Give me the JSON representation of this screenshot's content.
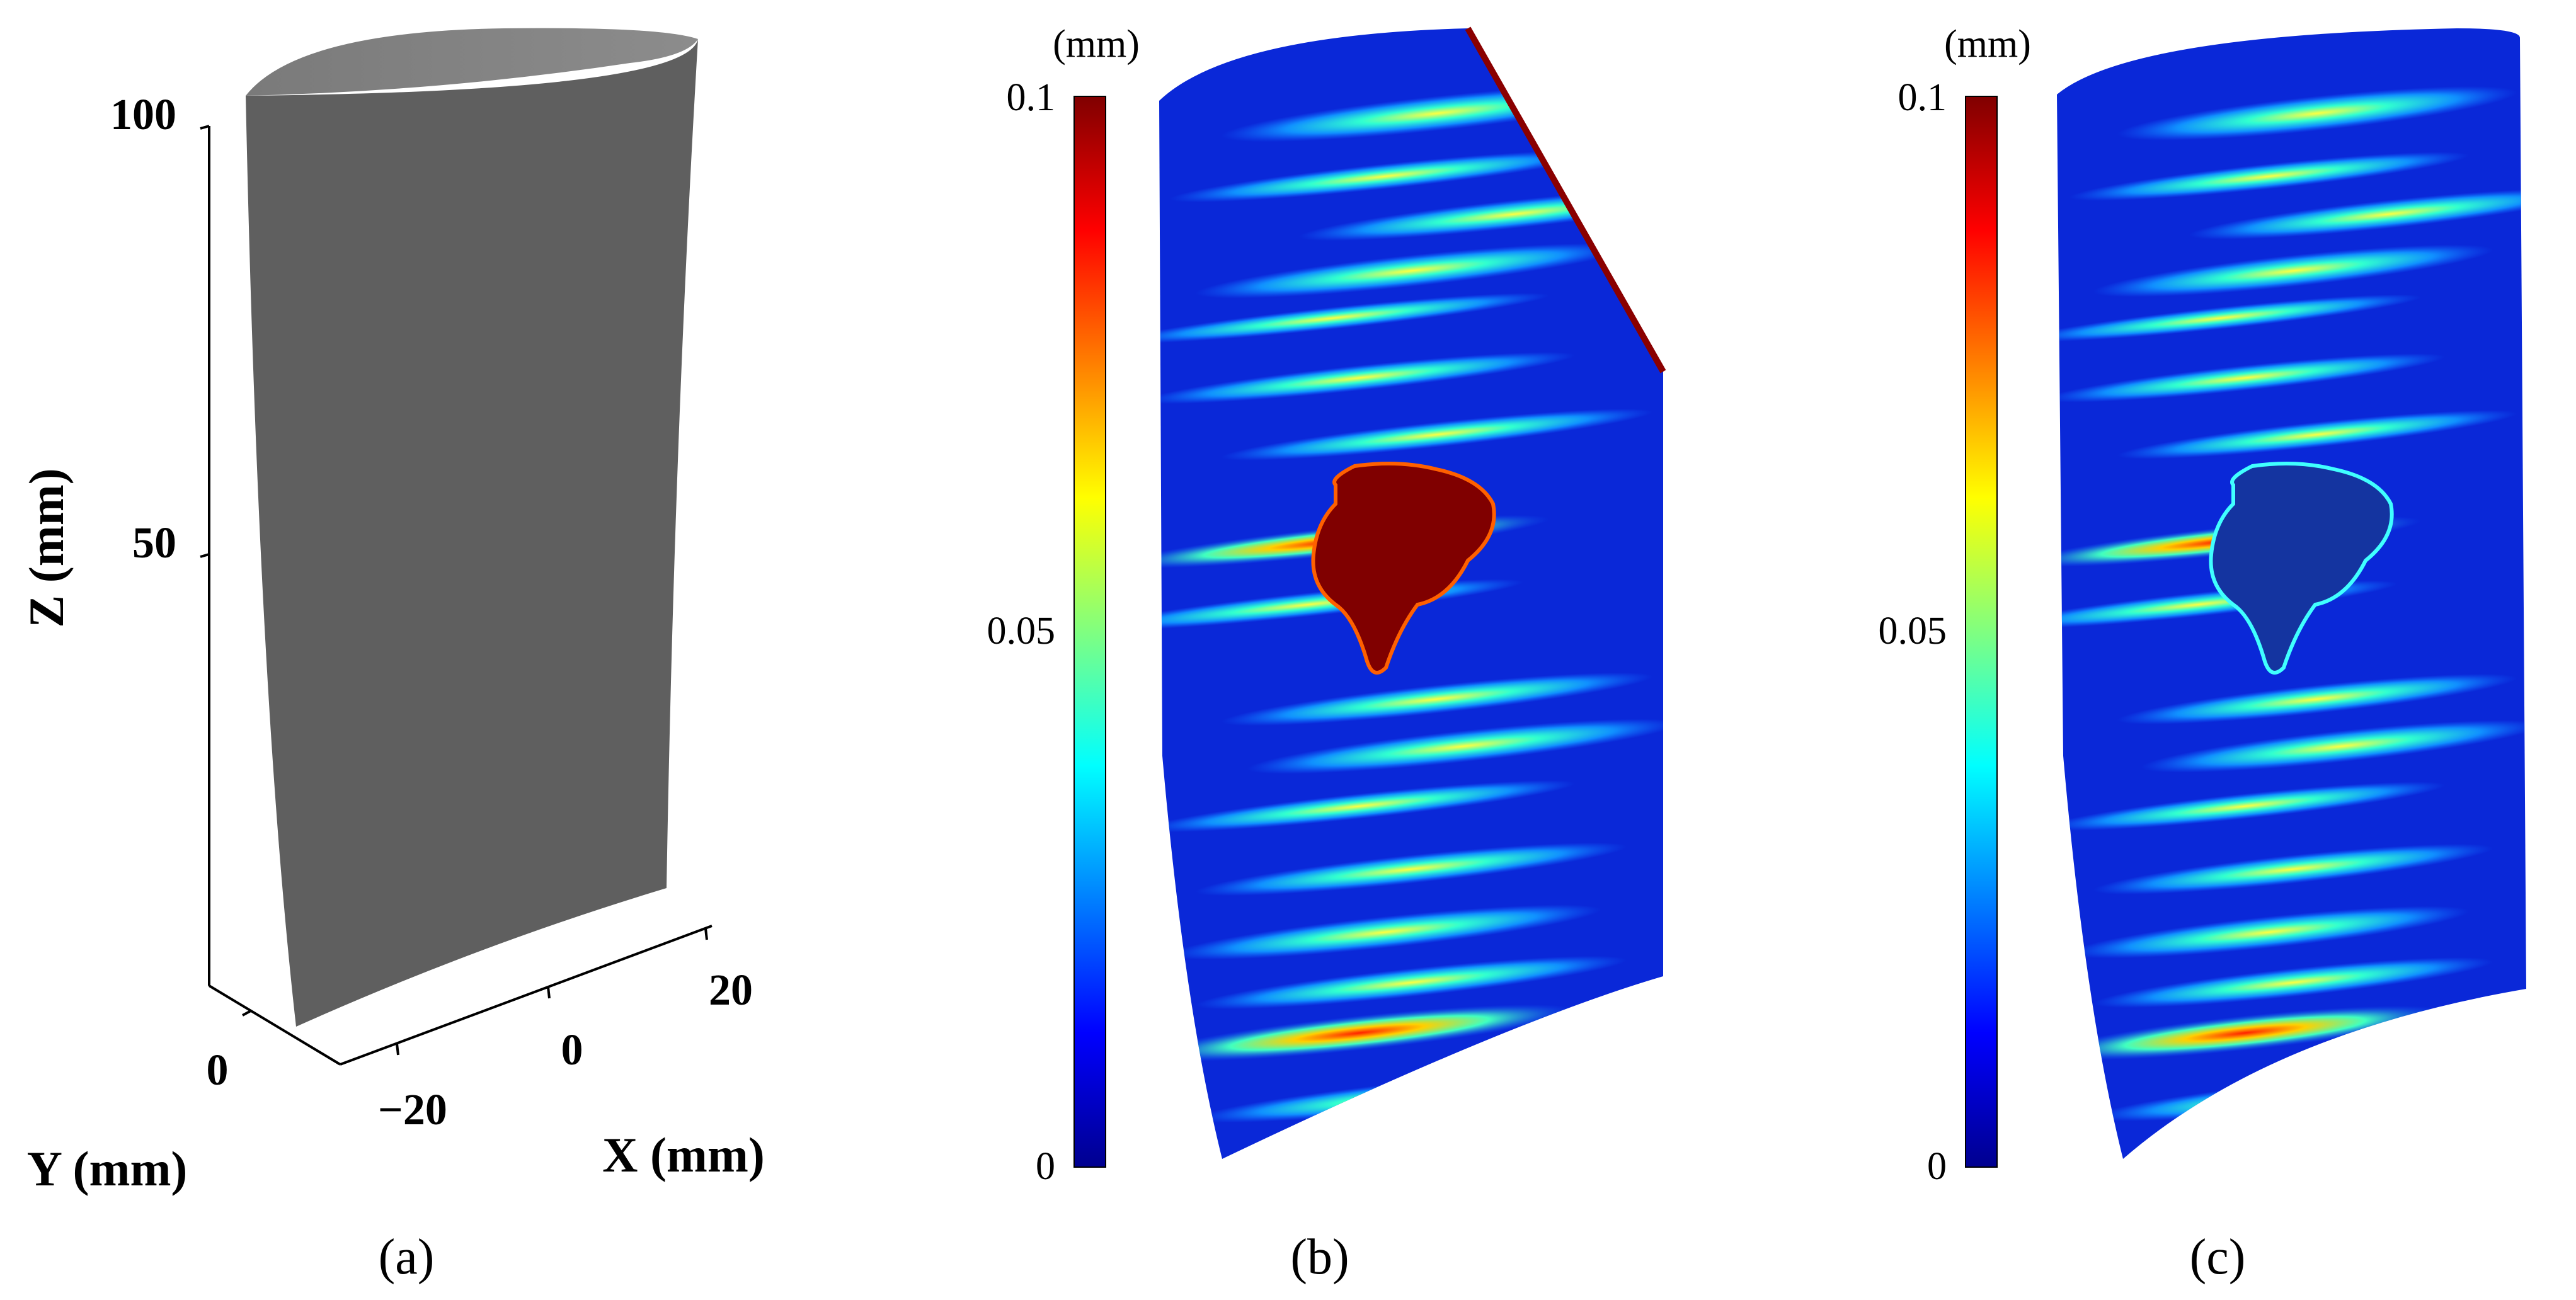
{
  "panel_a": {
    "z_label": "Z (mm)",
    "z_ticks": [
      "100",
      "50"
    ],
    "y_label": "Y (mm)",
    "y_tick": "0",
    "x_label": "X (mm)",
    "x_ticks": [
      "20",
      "0",
      "−20"
    ],
    "caption": "(a)",
    "surface_color": "#5f5f5f"
  },
  "panel_b": {
    "colorbar_unit": "(mm)",
    "colorbar_ticks": [
      "0.1",
      "0.05",
      "0"
    ],
    "caption": "(b)",
    "defect_color": "#800000"
  },
  "panel_c": {
    "colorbar_unit": "(mm)",
    "colorbar_ticks": [
      "0.1",
      "0.05",
      "0"
    ],
    "caption": "(c)",
    "defect_color": "#1434a0"
  },
  "colormap": [
    "#00008f",
    "#0000ff",
    "#0080ff",
    "#00ffff",
    "#80ff80",
    "#ffff00",
    "#ff8000",
    "#ff0000",
    "#800000"
  ]
}
